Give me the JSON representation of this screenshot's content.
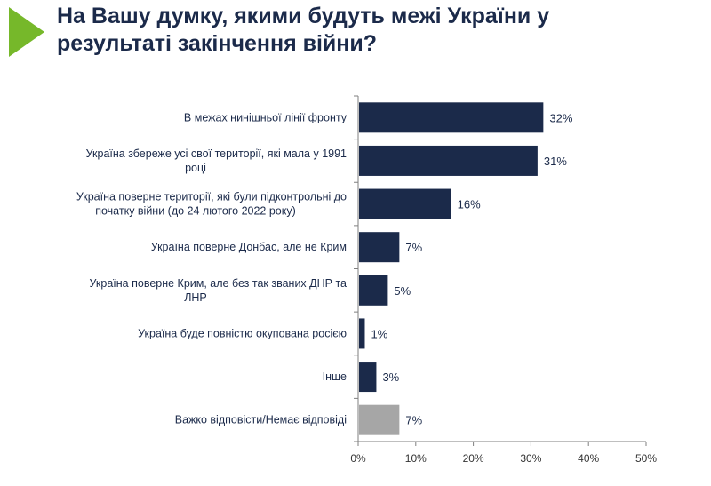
{
  "header": {
    "title_line1": "На Вашу думку, якими будуть межі України у",
    "title_line2": "результаті закінчення війни?",
    "accent_color": "#76b82a"
  },
  "chart_data": {
    "type": "bar",
    "orientation": "horizontal",
    "categories": [
      [
        "В межах нинішньої лінії фронту"
      ],
      [
        "Україна збереже усі свої території, які мала у 1991",
        "році"
      ],
      [
        "Україна поверне території, які були підконтрольні до",
        "початку війни (до 24 лютого 2022 року)"
      ],
      [
        "Україна поверне Донбас, але не Крим"
      ],
      [
        "Україна поверне Крим, але без так званих ДНР та",
        "ЛНР"
      ],
      [
        "Україна буде повністю окупована росією"
      ],
      [
        "Інше"
      ],
      [
        "Важко відповісти/Немає відповіді"
      ]
    ],
    "values": [
      32,
      31,
      16,
      7,
      5,
      1,
      3,
      7
    ],
    "value_labels": [
      "32%",
      "31%",
      "16%",
      "7%",
      "5%",
      "1%",
      "3%",
      "7%"
    ],
    "bar_colors": [
      "#1b2a4a",
      "#1b2a4a",
      "#1b2a4a",
      "#1b2a4a",
      "#1b2a4a",
      "#1b2a4a",
      "#1b2a4a",
      "#a6a6a6"
    ],
    "xlim": [
      0,
      50
    ],
    "x_ticks": [
      0,
      10,
      20,
      30,
      40,
      50
    ],
    "x_tick_labels": [
      "0%",
      "10%",
      "20%",
      "30%",
      "40%",
      "50%"
    ],
    "grid": false,
    "legend": "none"
  }
}
